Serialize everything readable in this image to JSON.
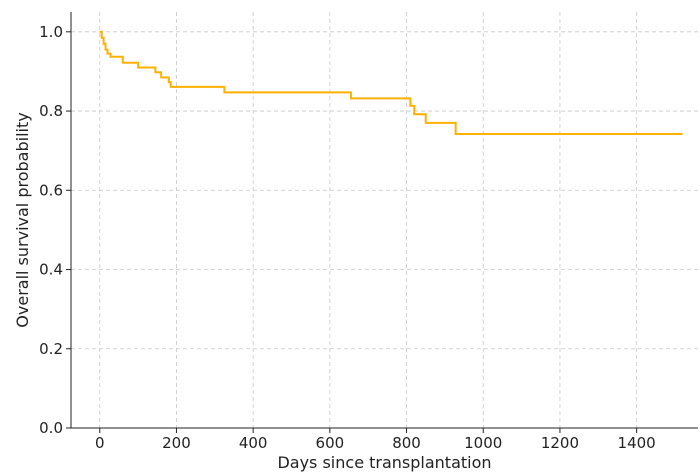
{
  "chart_data": {
    "type": "line",
    "step": true,
    "xlabel": "Days since transplantation",
    "ylabel": "Overall survival probability",
    "xlim": [
      -75,
      1560
    ],
    "ylim": [
      0,
      1.05
    ],
    "xticks": [
      0,
      200,
      400,
      600,
      800,
      1000,
      1200,
      1400
    ],
    "yticks": [
      0.0,
      0.2,
      0.4,
      0.6,
      0.8,
      1.0
    ],
    "grid": true,
    "series": [
      {
        "name": "",
        "color": "#FFB000",
        "x": [
          0,
          5,
          10,
          15,
          20,
          28,
          60,
          100,
          145,
          160,
          180,
          185,
          325,
          655,
          810,
          820,
          850,
          928,
          1520
        ],
        "y": [
          1.0,
          0.985,
          0.97,
          0.955,
          0.945,
          0.937,
          0.922,
          0.91,
          0.898,
          0.885,
          0.873,
          0.861,
          0.847,
          0.832,
          0.813,
          0.792,
          0.77,
          0.742,
          0.742
        ]
      }
    ]
  }
}
